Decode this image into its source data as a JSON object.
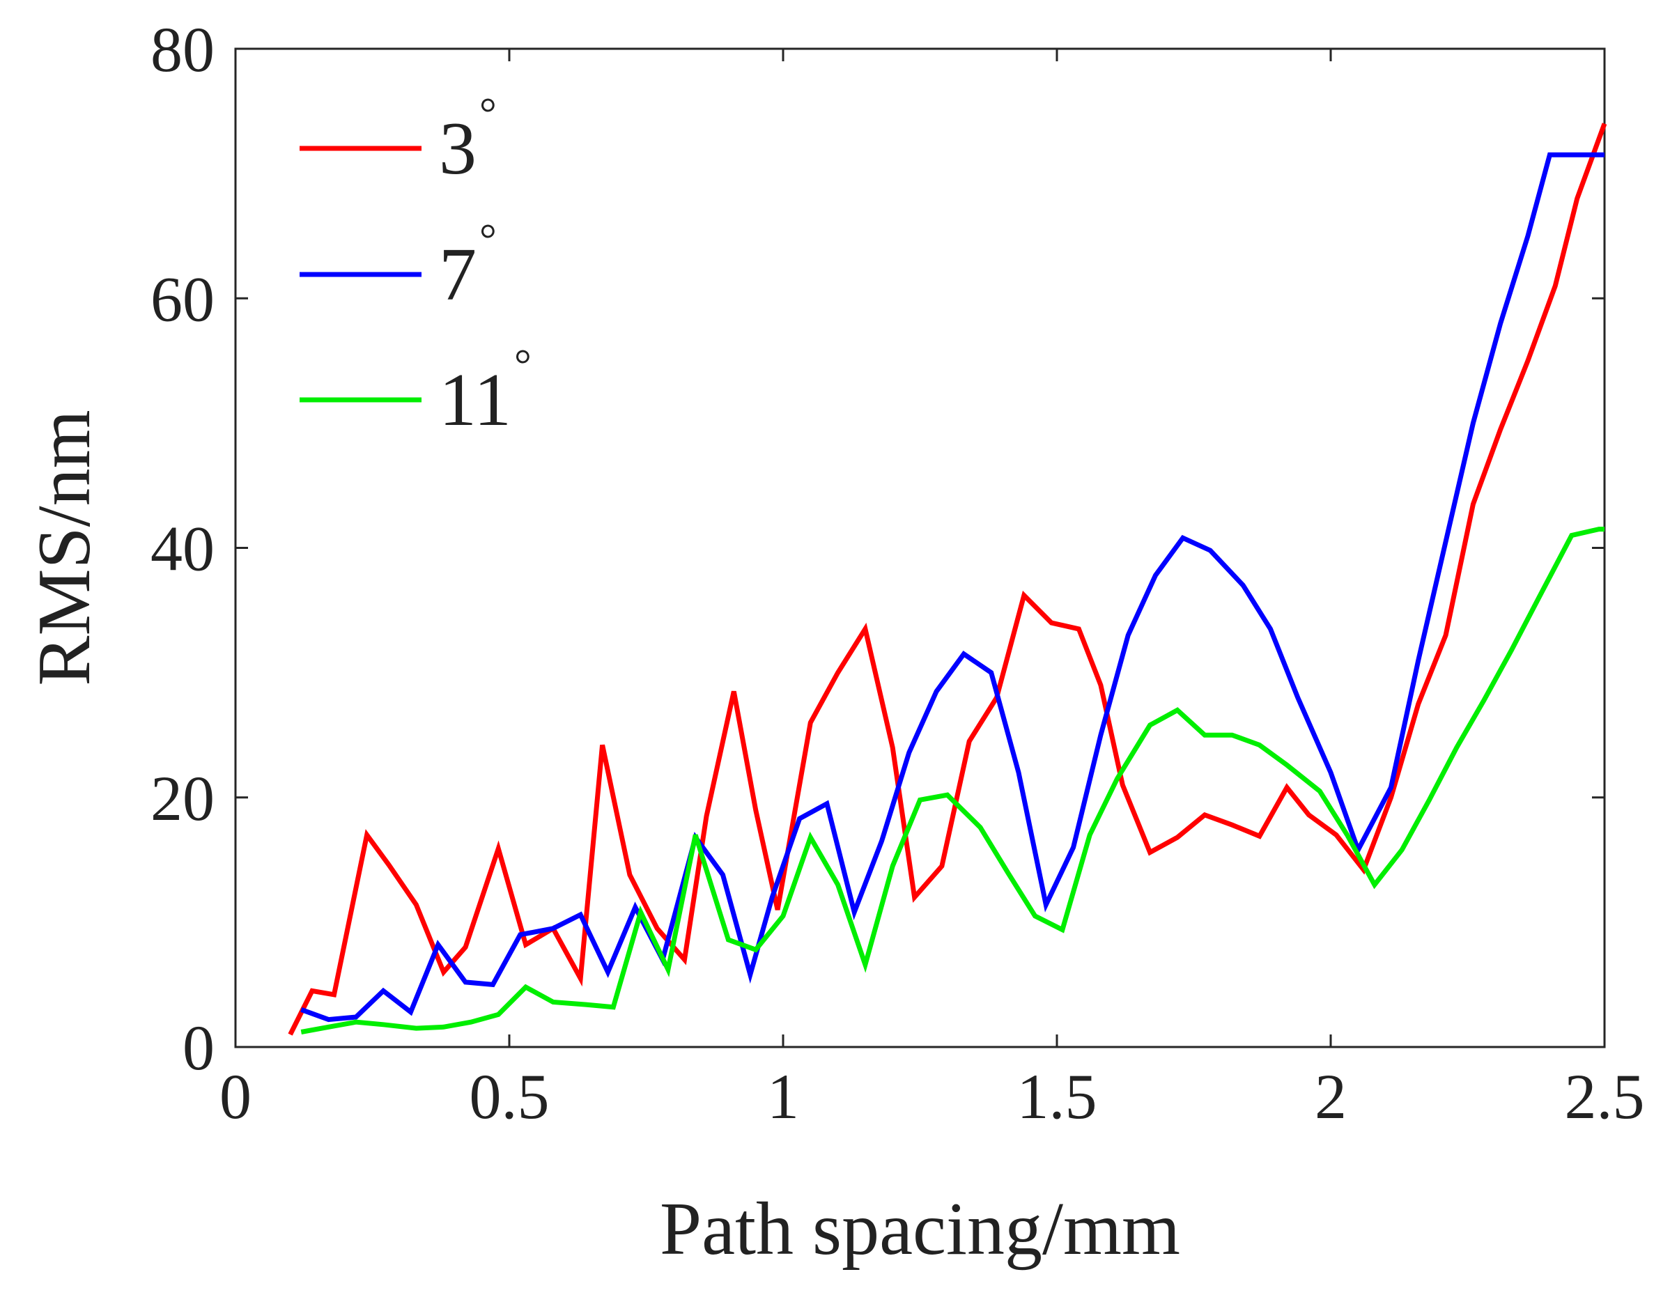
{
  "chart_data": {
    "type": "line",
    "title": "",
    "xlabel": "Path spacing/mm",
    "ylabel": "RMS/nm",
    "xlim": [
      0,
      2.5
    ],
    "ylim": [
      0,
      80
    ],
    "xticks": [
      0,
      0.5,
      1,
      1.5,
      2,
      2.5
    ],
    "xtick_labels": [
      "0",
      "0.5",
      "1",
      "1.5",
      "2",
      "2.5"
    ],
    "yticks": [
      0,
      20,
      40,
      60,
      80
    ],
    "ytick_labels": [
      "0",
      "20",
      "40",
      "60",
      "80"
    ],
    "grid": false,
    "legend_position": "top-left",
    "degree_symbol": "°",
    "series": [
      {
        "name": "3",
        "color": "#ff0000",
        "x": [
          0.1,
          0.14,
          0.18,
          0.24,
          0.28,
          0.33,
          0.38,
          0.42,
          0.48,
          0.53,
          0.58,
          0.63,
          0.67,
          0.72,
          0.77,
          0.82,
          0.86,
          0.91,
          0.95,
          0.99,
          1.05,
          1.1,
          1.15,
          1.2,
          1.24,
          1.29,
          1.34,
          1.39,
          1.44,
          1.49,
          1.54,
          1.58,
          1.62,
          1.67,
          1.72,
          1.77,
          1.82,
          1.87,
          1.92,
          1.96,
          2.01,
          2.06,
          2.11,
          2.16,
          2.21,
          2.26,
          2.31,
          2.36,
          2.41,
          2.45,
          2.5
        ],
        "y": [
          1.0,
          4.5,
          4.2,
          17.0,
          14.6,
          11.4,
          6.0,
          8.0,
          15.9,
          8.2,
          9.5,
          5.5,
          24.2,
          13.8,
          9.5,
          7.0,
          18.5,
          28.5,
          19.0,
          11.0,
          26.0,
          30.0,
          33.5,
          24.0,
          12.0,
          14.5,
          24.5,
          28.0,
          36.2,
          34.0,
          33.5,
          29.0,
          21.0,
          15.6,
          16.8,
          18.6,
          17.8,
          16.9,
          20.8,
          18.6,
          17.0,
          14.2,
          20.0,
          27.5,
          33.0,
          43.5,
          49.5,
          55.0,
          61.0,
          68.0,
          74.0
        ]
      },
      {
        "name": "7",
        "color": "#0000ff",
        "x": [
          0.12,
          0.17,
          0.22,
          0.27,
          0.32,
          0.37,
          0.42,
          0.47,
          0.52,
          0.58,
          0.63,
          0.68,
          0.73,
          0.78,
          0.84,
          0.89,
          0.94,
          0.98,
          1.03,
          1.08,
          1.13,
          1.18,
          1.23,
          1.28,
          1.33,
          1.38,
          1.43,
          1.48,
          1.53,
          1.58,
          1.63,
          1.68,
          1.73,
          1.78,
          1.84,
          1.89,
          1.94,
          2.0,
          2.05,
          2.11,
          2.16,
          2.21,
          2.26,
          2.31,
          2.36,
          2.4,
          2.45,
          2.5
        ],
        "y": [
          3.0,
          2.2,
          2.4,
          4.5,
          2.8,
          8.2,
          5.2,
          5.0,
          9.0,
          9.5,
          10.6,
          6.0,
          11.2,
          7.0,
          16.8,
          13.8,
          5.8,
          12.0,
          18.3,
          19.5,
          10.8,
          16.5,
          23.6,
          28.5,
          31.5,
          30.0,
          22.0,
          11.4,
          16.0,
          25.0,
          33.0,
          37.8,
          40.8,
          39.8,
          37.0,
          33.5,
          28.0,
          22.0,
          15.8,
          20.8,
          31.0,
          40.5,
          50.0,
          58.0,
          65.0,
          71.5,
          71.5,
          71.5
        ]
      },
      {
        "name": "11",
        "color": "#00ee00",
        "x": [
          0.12,
          0.17,
          0.22,
          0.27,
          0.33,
          0.38,
          0.43,
          0.48,
          0.53,
          0.58,
          0.64,
          0.69,
          0.74,
          0.79,
          0.84,
          0.9,
          0.95,
          1.0,
          1.05,
          1.1,
          1.15,
          1.2,
          1.25,
          1.3,
          1.36,
          1.41,
          1.46,
          1.51,
          1.56,
          1.61,
          1.67,
          1.72,
          1.77,
          1.82,
          1.87,
          1.92,
          1.98,
          2.03,
          2.08,
          2.13,
          2.18,
          2.23,
          2.28,
          2.33,
          2.38,
          2.44,
          2.49,
          2.5
        ],
        "y": [
          1.2,
          1.6,
          2.0,
          1.8,
          1.5,
          1.6,
          2.0,
          2.6,
          4.8,
          3.6,
          3.4,
          3.2,
          10.8,
          6.2,
          17.0,
          8.6,
          7.8,
          10.5,
          16.8,
          13.0,
          6.6,
          14.5,
          19.8,
          20.2,
          17.6,
          14.0,
          10.5,
          9.4,
          17.0,
          21.5,
          25.8,
          27.0,
          25.0,
          25.0,
          24.2,
          22.6,
          20.5,
          17.0,
          13.0,
          15.8,
          19.8,
          24.0,
          27.8,
          31.8,
          36.0,
          41.0,
          41.5,
          41.5
        ]
      }
    ]
  }
}
